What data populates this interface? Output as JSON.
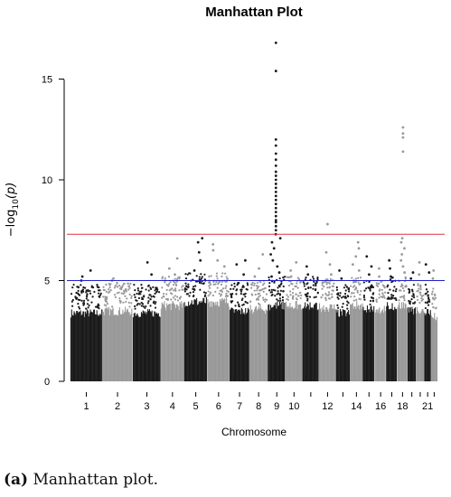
{
  "chart_data": {
    "type": "scatter",
    "title": "Manhattan Plot",
    "xlabel": "Chromosome",
    "ylabel_parts": [
      "−log",
      "10",
      "(p)"
    ],
    "ylim": [
      0,
      17
    ],
    "yticks": [
      0,
      5,
      10,
      15
    ],
    "grid": false,
    "legend": "none",
    "colors": {
      "odd": "#1a1a1a",
      "even": "#999999",
      "suggestive_line": "#2020cc",
      "genomewide_line": "#e0304a"
    },
    "threshold_lines": [
      {
        "value": 7.3,
        "color": "#e0304a"
      },
      {
        "value": 5.0,
        "color": "#2020cc"
      }
    ],
    "chromosomes": [
      {
        "chr": 1,
        "label": "1",
        "base_max": 4.2,
        "peaks": [
          5.5,
          5.2,
          5.0
        ]
      },
      {
        "chr": 2,
        "label": "2",
        "base_max": 4.3,
        "peaks": [
          5.1,
          5.0
        ]
      },
      {
        "chr": 3,
        "label": "3",
        "base_max": 4.2,
        "peaks": [
          5.9,
          5.3
        ]
      },
      {
        "chr": 4,
        "label": "4",
        "base_max": 4.6,
        "peaks": [
          6.1,
          5.6,
          5.3
        ]
      },
      {
        "chr": 5,
        "label": "5",
        "base_max": 4.8,
        "peaks": [
          7.1,
          6.9,
          6.4,
          6.0,
          5.5
        ]
      },
      {
        "chr": 6,
        "label": "6",
        "base_max": 4.8,
        "peaks": [
          6.8,
          6.5,
          6.0,
          5.7
        ]
      },
      {
        "chr": 7,
        "label": "7",
        "base_max": 4.3,
        "peaks": [
          6.0,
          5.8,
          5.3
        ]
      },
      {
        "chr": 8,
        "label": "8",
        "base_max": 4.4,
        "peaks": [
          6.3,
          5.6,
          5.2
        ]
      },
      {
        "chr": 9,
        "label": "9",
        "base_max": 4.6,
        "peaks": [
          16.8,
          15.4,
          12.0,
          11.7,
          11.3,
          11.0,
          10.7,
          10.4,
          10.2,
          10.0,
          9.8,
          9.6,
          9.4,
          9.2,
          9.0,
          8.8,
          8.6,
          8.4,
          8.2,
          8.0,
          7.9,
          7.7,
          7.5,
          7.3,
          7.1,
          6.9,
          6.6,
          6.3,
          6.0,
          5.7,
          5.4,
          5.2
        ]
      },
      {
        "chr": 10,
        "label": "10",
        "base_max": 4.6,
        "peaks": [
          5.9,
          5.5,
          5.2
        ]
      },
      {
        "chr": 11,
        "label": "",
        "base_max": 4.6,
        "peaks": [
          5.7,
          5.3
        ]
      },
      {
        "chr": 12,
        "label": "12",
        "base_max": 4.5,
        "peaks": [
          7.8,
          6.4,
          5.8,
          5.3
        ]
      },
      {
        "chr": 13,
        "label": "",
        "base_max": 4.2,
        "peaks": [
          5.5,
          5.1
        ]
      },
      {
        "chr": 14,
        "label": "14",
        "base_max": 4.6,
        "peaks": [
          6.9,
          6.6,
          6.2,
          5.8,
          5.5
        ]
      },
      {
        "chr": 15,
        "label": "",
        "base_max": 4.4,
        "peaks": [
          6.2,
          5.7,
          5.3
        ]
      },
      {
        "chr": 16,
        "label": "16",
        "base_max": 4.4,
        "peaks": [
          5.6,
          5.2
        ]
      },
      {
        "chr": 17,
        "label": "",
        "base_max": 4.6,
        "peaks": [
          6.0,
          5.6,
          5.2
        ]
      },
      {
        "chr": 18,
        "label": "18",
        "base_max": 4.6,
        "peaks": [
          12.6,
          12.3,
          12.1,
          11.4,
          7.1,
          6.9,
          6.6,
          6.3,
          6.0,
          5.7,
          5.4
        ]
      },
      {
        "chr": 19,
        "label": "",
        "base_max": 4.3,
        "peaks": [
          5.4,
          5.1
        ]
      },
      {
        "chr": 20,
        "label": "",
        "base_max": 4.4,
        "peaks": [
          5.9,
          5.3
        ]
      },
      {
        "chr": 21,
        "label": "21",
        "base_max": 4.2,
        "peaks": [
          5.8,
          5.4
        ]
      },
      {
        "chr": 22,
        "label": "",
        "base_max": 4.0,
        "peaks": [
          5.5,
          5.1
        ]
      }
    ]
  },
  "caption": {
    "label": "(a)",
    "text": "Manhattan plot."
  }
}
